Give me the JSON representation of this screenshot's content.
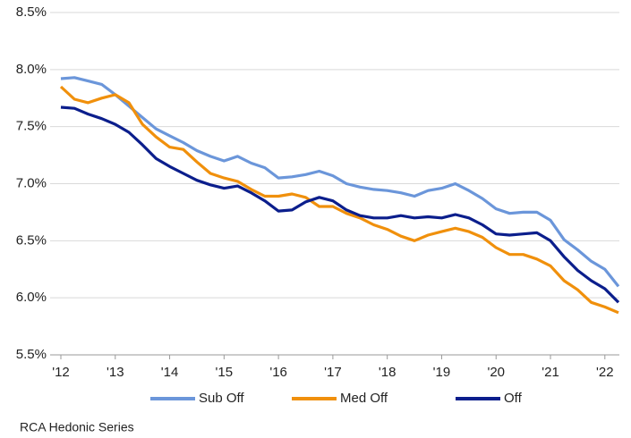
{
  "chart_data": {
    "type": "line",
    "x": [
      2012,
      2012.25,
      2012.5,
      2012.75,
      2013,
      2013.25,
      2013.5,
      2013.75,
      2014,
      2014.25,
      2014.5,
      2014.75,
      2015,
      2015.25,
      2015.5,
      2015.75,
      2016,
      2016.25,
      2016.5,
      2016.75,
      2017,
      2017.25,
      2017.5,
      2017.75,
      2018,
      2018.25,
      2018.5,
      2018.75,
      2019,
      2019.25,
      2019.5,
      2019.75,
      2020,
      2020.25,
      2020.5,
      2020.75,
      2021,
      2021.25,
      2021.5,
      2021.75,
      2022,
      2022.25
    ],
    "series": [
      {
        "name": "Sub Off",
        "color": "#6b96da",
        "values": [
          7.92,
          7.93,
          7.9,
          7.87,
          7.78,
          7.68,
          7.58,
          7.48,
          7.42,
          7.36,
          7.29,
          7.24,
          7.2,
          7.24,
          7.18,
          7.14,
          7.05,
          7.06,
          7.08,
          7.11,
          7.07,
          7.0,
          6.97,
          6.95,
          6.94,
          6.92,
          6.89,
          6.94,
          6.96,
          7.0,
          6.94,
          6.87,
          6.78,
          6.74,
          6.75,
          6.75,
          6.68,
          6.51,
          6.42,
          6.32,
          6.25,
          6.1
        ]
      },
      {
        "name": "Med Off",
        "color": "#f0900c",
        "values": [
          7.85,
          7.74,
          7.71,
          7.75,
          7.78,
          7.71,
          7.52,
          7.41,
          7.32,
          7.3,
          7.19,
          7.09,
          7.05,
          7.02,
          6.95,
          6.89,
          6.89,
          6.91,
          6.88,
          6.8,
          6.8,
          6.74,
          6.7,
          6.64,
          6.6,
          6.54,
          6.5,
          6.55,
          6.58,
          6.61,
          6.58,
          6.53,
          6.44,
          6.38,
          6.38,
          6.34,
          6.28,
          6.15,
          6.07,
          5.96,
          5.92,
          5.87
        ]
      },
      {
        "name": "Off",
        "color": "#0b1e8c",
        "values": [
          7.67,
          7.66,
          7.61,
          7.57,
          7.52,
          7.45,
          7.34,
          7.22,
          7.15,
          7.09,
          7.03,
          6.99,
          6.96,
          6.98,
          6.92,
          6.85,
          6.76,
          6.77,
          6.84,
          6.88,
          6.85,
          6.77,
          6.72,
          6.7,
          6.7,
          6.72,
          6.7,
          6.71,
          6.7,
          6.73,
          6.7,
          6.64,
          6.56,
          6.55,
          6.56,
          6.57,
          6.5,
          6.36,
          6.24,
          6.15,
          6.08,
          5.96
        ]
      }
    ],
    "xlim": [
      2012,
      2022.25
    ],
    "xticks": [
      {
        "value": 2012,
        "label": "'12"
      },
      {
        "value": 2013,
        "label": "'13"
      },
      {
        "value": 2014,
        "label": "'14"
      },
      {
        "value": 2015,
        "label": "'15"
      },
      {
        "value": 2016,
        "label": "'16"
      },
      {
        "value": 2017,
        "label": "'17"
      },
      {
        "value": 2018,
        "label": "'18"
      },
      {
        "value": 2019,
        "label": "'19"
      },
      {
        "value": 2020,
        "label": "'20"
      },
      {
        "value": 2021,
        "label": "'21"
      },
      {
        "value": 2022,
        "label": "'22"
      }
    ],
    "ylim": [
      5.5,
      8.5
    ],
    "yticks": [
      {
        "value": 5.5,
        "label": "5.5%"
      },
      {
        "value": 6.0,
        "label": "6.0%"
      },
      {
        "value": 6.5,
        "label": "6.5%"
      },
      {
        "value": 7.0,
        "label": "7.0%"
      },
      {
        "value": 7.5,
        "label": "7.5%"
      },
      {
        "value": 8.0,
        "label": "8.0%"
      },
      {
        "value": 8.5,
        "label": "8.5%"
      }
    ],
    "grid": true,
    "legend": "bottom",
    "source": "RCA Hedonic Series"
  }
}
